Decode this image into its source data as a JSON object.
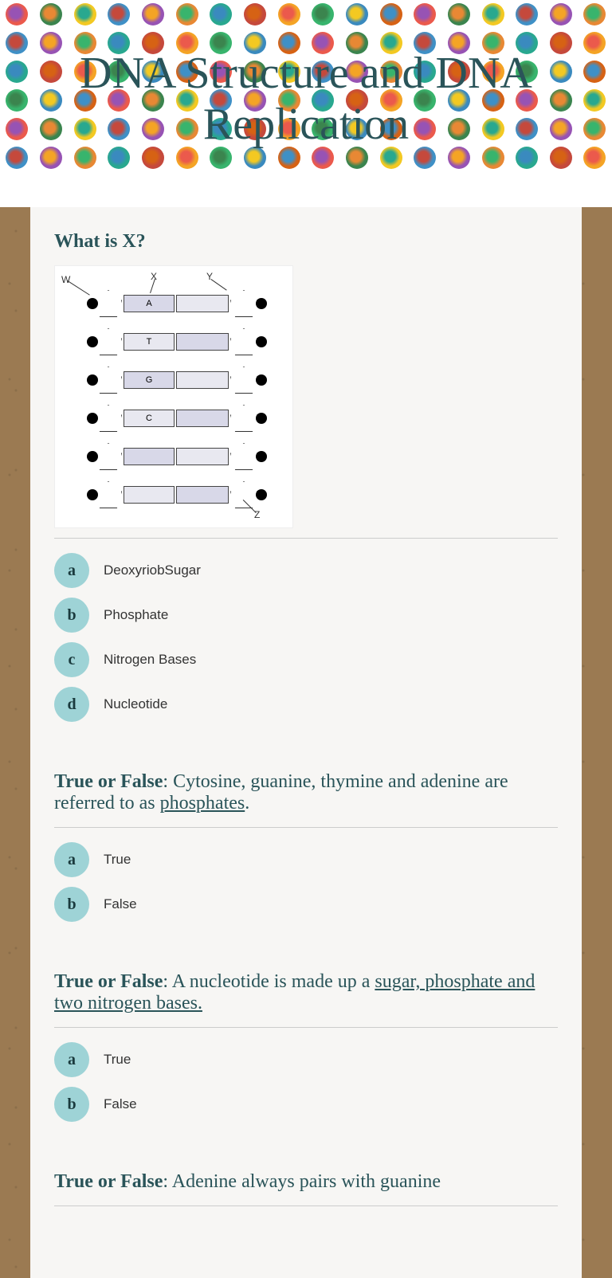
{
  "title": "DNA Structure and DNA Replication",
  "header_dots": {
    "rows": 6,
    "per_row": 18,
    "colors": [
      "#e94b3c",
      "#2a7a3f",
      "#f2c40f",
      "#2e86c1",
      "#8e44ad",
      "#e67e22",
      "#16a085",
      "#c0392b",
      "#f39c12",
      "#27ae60",
      "#2980b9",
      "#d35400"
    ]
  },
  "diagram": {
    "labels": {
      "W": "W",
      "X": "X",
      "Y": "Y",
      "Z": "Z"
    },
    "bases": [
      "A",
      "T",
      "G",
      "C"
    ],
    "colors": {
      "phosphate": "#000000",
      "sugar_border": "#333333",
      "base_fill_1": "#d8d8e8",
      "base_fill_2": "#e8e8f0",
      "bg": "#ffffff"
    },
    "rows": 6
  },
  "questions": [
    {
      "title_parts": [
        {
          "t": "What is X?",
          "b": true
        }
      ],
      "has_diagram": true,
      "layout": "column",
      "options": [
        {
          "k": "a",
          "t": "DeoxyriobSugar"
        },
        {
          "k": "b",
          "t": "Phosphate"
        },
        {
          "k": "c",
          "t": "Nitrogen Bases"
        },
        {
          "k": "d",
          "t": "Nucleotide"
        }
      ]
    },
    {
      "title_parts": [
        {
          "t": "True or False",
          "b": true
        },
        {
          "t": ": Cytosine, guanine, thymine and adenine are referred to as ",
          "b": false
        },
        {
          "t": "phosphates",
          "b": false,
          "u": true
        },
        {
          "t": ".",
          "b": false
        }
      ],
      "layout": "row",
      "options": [
        {
          "k": "a",
          "t": "True"
        },
        {
          "k": "b",
          "t": "False"
        }
      ]
    },
    {
      "title_parts": [
        {
          "t": "True or False",
          "b": true
        },
        {
          "t": ": A nucleotide is made up a ",
          "b": false
        },
        {
          "t": "sugar, phosphate and two nitrogen bases. ",
          "b": false,
          "u": true
        }
      ],
      "layout": "row",
      "options": [
        {
          "k": "a",
          "t": "True"
        },
        {
          "k": "b",
          "t": "False"
        }
      ]
    },
    {
      "title_parts": [
        {
          "t": "True or False",
          "b": true
        },
        {
          "t": ": Adenine always pairs with guanine",
          "b": false
        }
      ],
      "layout": "row",
      "options": []
    }
  ],
  "style": {
    "title_color": "#2a5459",
    "badge_bg": "#9ed3d6",
    "content_bg": "#f7f6f4",
    "cork_bg": "#9b7a52"
  }
}
